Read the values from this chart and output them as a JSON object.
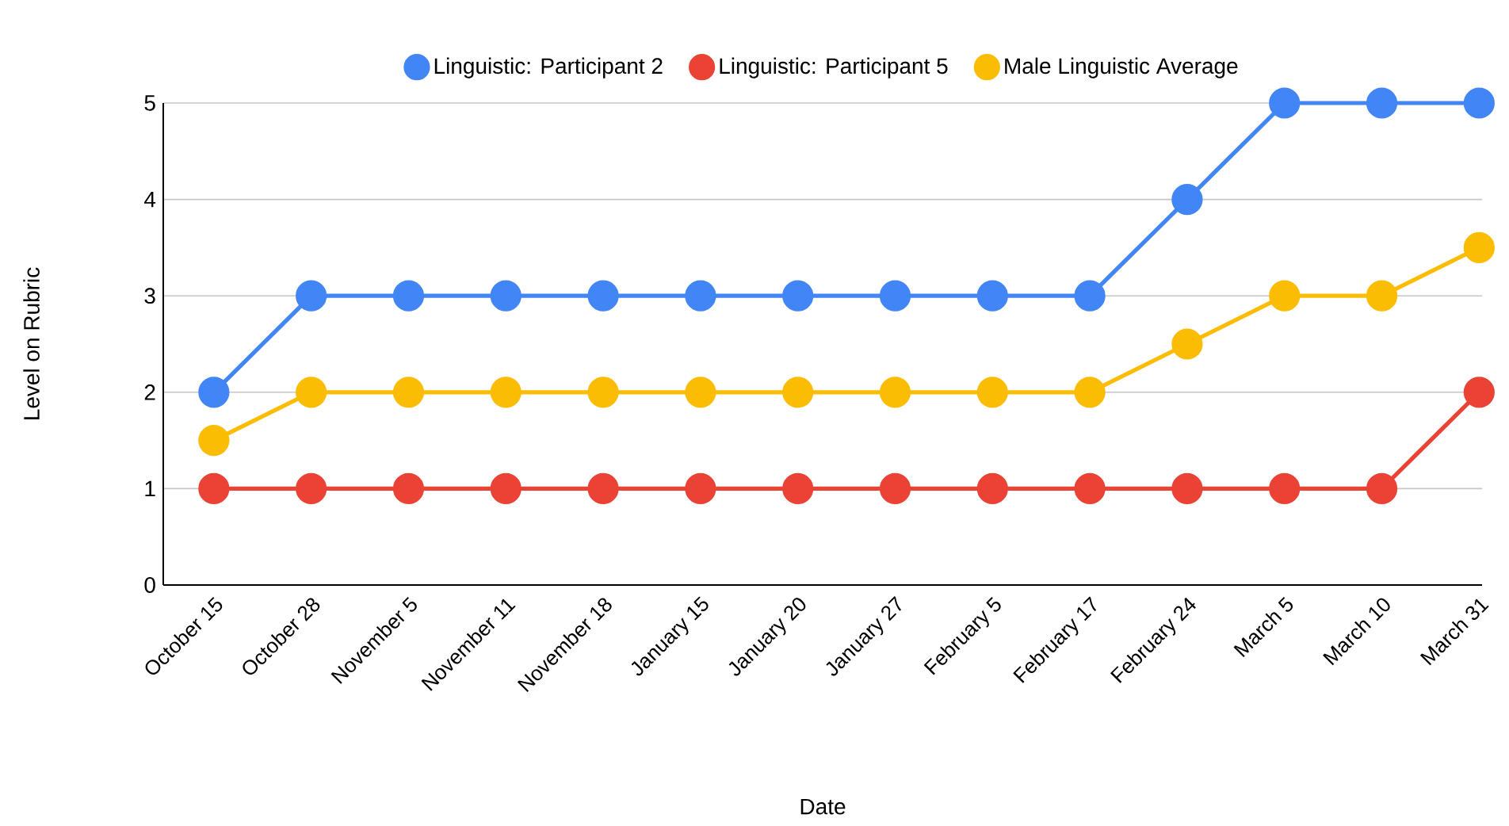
{
  "chart_data": {
    "type": "line",
    "xlabel": "Date",
    "ylabel": "Level on Rubric",
    "categories": [
      "October 15",
      "October 28",
      "November 5",
      "November 11",
      "November 18",
      "January 15",
      "January 20",
      "January 27",
      "February 5",
      "February 17",
      "February 24",
      "March 5",
      "March 10",
      "March 31"
    ],
    "series": [
      {
        "name": "Linguistic: Participant 2",
        "color": "#4285f4",
        "values": [
          2,
          3,
          3,
          3,
          3,
          3,
          3,
          3,
          3,
          3,
          4,
          5,
          5,
          5
        ]
      },
      {
        "name": "Linguistic: Participant 5",
        "color": "#ea4335",
        "values": [
          1,
          1,
          1,
          1,
          1,
          1,
          1,
          1,
          1,
          1,
          1,
          1,
          1,
          2
        ]
      },
      {
        "name": "Male Linguistic Average",
        "color": "#fbbc04",
        "values": [
          1.5,
          2,
          2,
          2,
          2,
          2,
          2,
          2,
          2,
          2,
          2.5,
          3,
          3,
          3.5
        ]
      }
    ],
    "ylim": [
      0,
      5
    ],
    "yticks": [
      0,
      1,
      2,
      3,
      4,
      5
    ],
    "grid": "y",
    "legend": "top",
    "marker": "circle",
    "line_style": "solid"
  }
}
